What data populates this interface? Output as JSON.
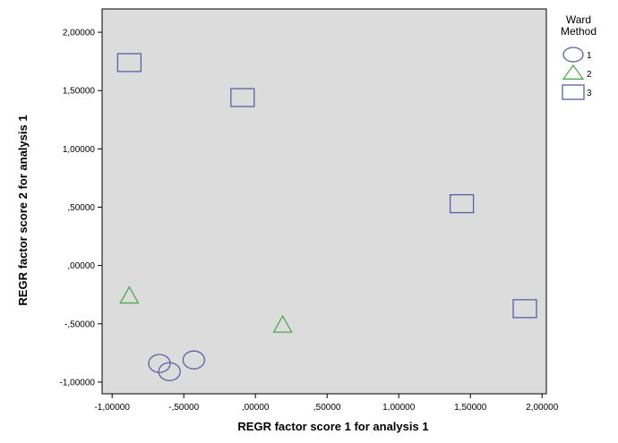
{
  "chart_data": {
    "type": "scatter",
    "title": "",
    "xlabel": "REGR factor score   1 for analysis 1",
    "ylabel": "REGR factor score   2 for analysis 1",
    "xlim": [
      -1.07,
      2.03
    ],
    "ylim": [
      -1.1,
      2.2
    ],
    "x_ticks": [
      -1.0,
      -0.5,
      0.0,
      0.5,
      1.0,
      1.5,
      2.0
    ],
    "x_tick_labels": [
      "-1,00000",
      "-,50000",
      ",00000",
      ",50000",
      "1,00000",
      "1,50000",
      "2,00000"
    ],
    "y_ticks": [
      -1.0,
      -0.5,
      0.0,
      0.5,
      1.0,
      1.5,
      2.0
    ],
    "y_tick_labels": [
      "-1,00000",
      "-,50000",
      ",00000",
      ",50000",
      "1,00000",
      "1,50000",
      "2,00000"
    ],
    "grid": false,
    "legend_placement": "right",
    "legend_title": [
      "Ward",
      "Method"
    ],
    "plot_background": "#dcdcdc",
    "series": [
      {
        "name": "1",
        "marker": "circle",
        "color": "#5b5fa8",
        "points": [
          {
            "x": -0.67,
            "y": -0.84
          },
          {
            "x": -0.6,
            "y": -0.91
          },
          {
            "x": -0.43,
            "y": -0.81
          }
        ]
      },
      {
        "name": "2",
        "marker": "triangle",
        "color": "#4fa84f",
        "points": [
          {
            "x": -0.88,
            "y": -0.26
          },
          {
            "x": 0.19,
            "y": -0.51
          }
        ]
      },
      {
        "name": "3",
        "marker": "square",
        "color": "#5b5fa8",
        "points": [
          {
            "x": -0.88,
            "y": 1.74
          },
          {
            "x": -0.09,
            "y": 1.44
          },
          {
            "x": 1.44,
            "y": 0.53
          },
          {
            "x": 1.88,
            "y": -0.37
          }
        ]
      }
    ]
  }
}
